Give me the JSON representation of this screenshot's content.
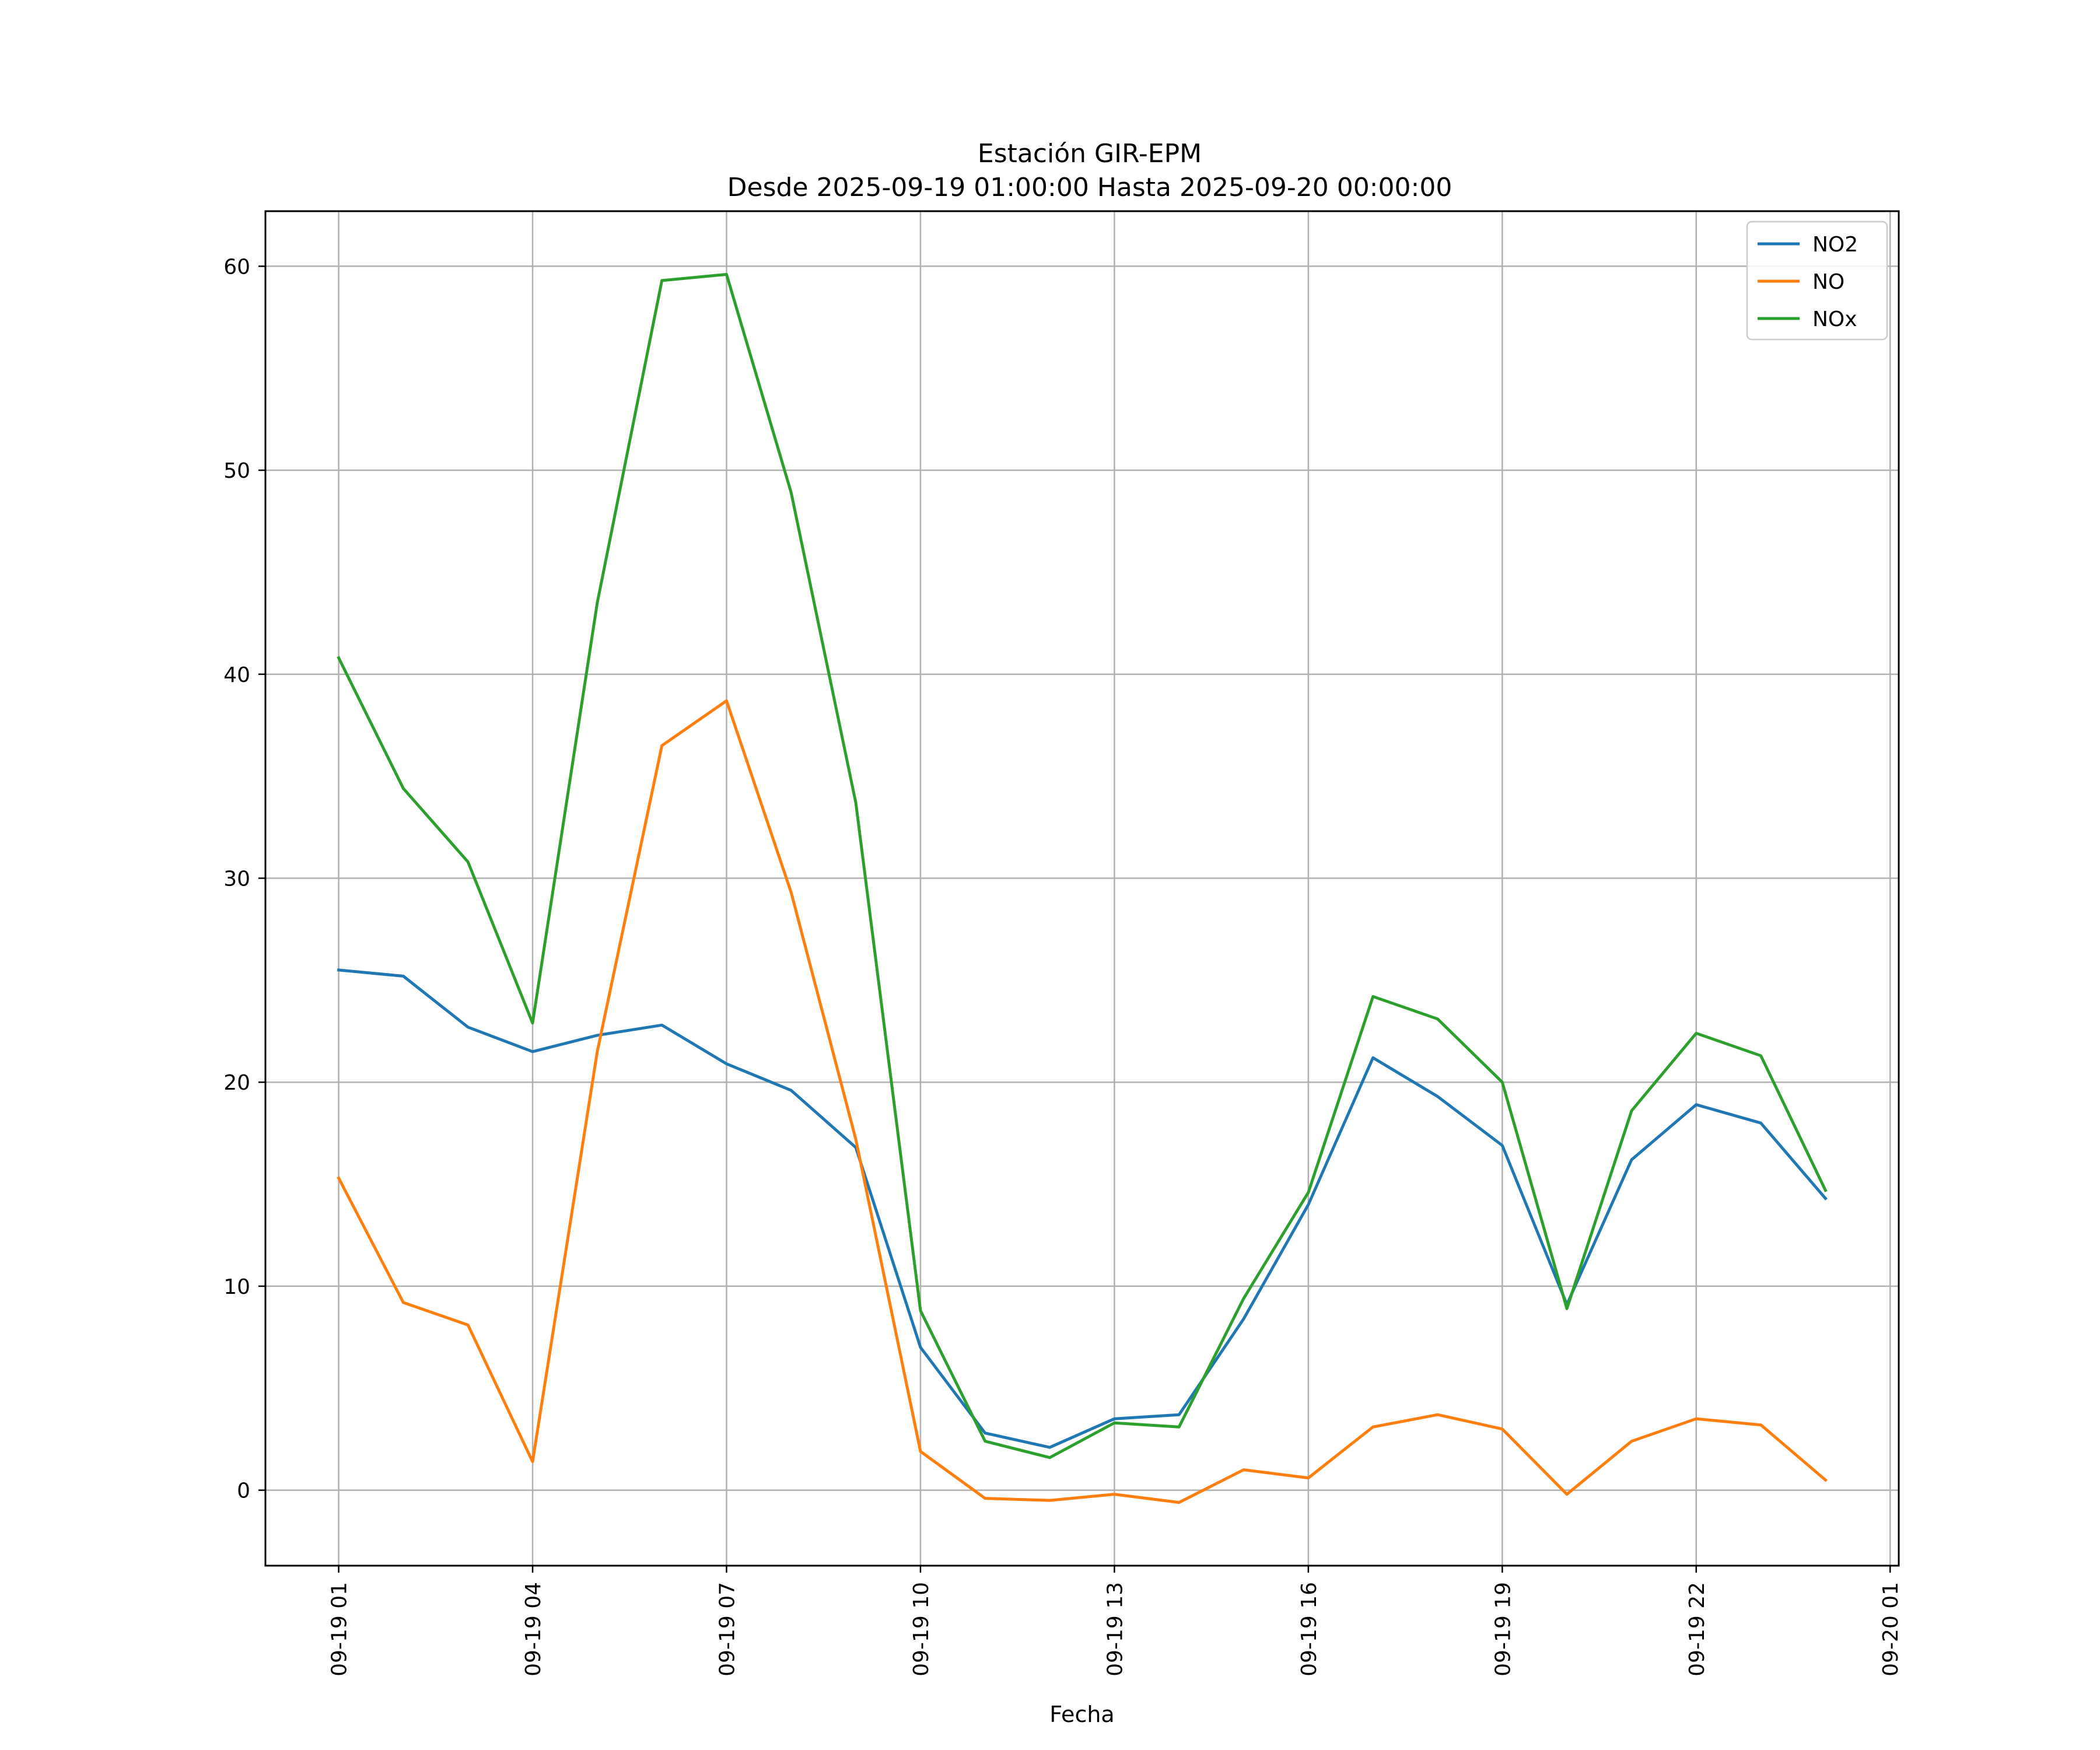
{
  "chart_data": {
    "type": "line",
    "title": "Estación GIR-EPM",
    "subtitle": "Desde 2025-09-19 01:00:00 Hasta 2025-09-20 00:00:00",
    "xlabel": "Fecha",
    "ylabel": "",
    "x": [
      "2025-09-19 01:00",
      "2025-09-19 02:00",
      "2025-09-19 03:00",
      "2025-09-19 04:00",
      "2025-09-19 05:00",
      "2025-09-19 06:00",
      "2025-09-19 07:00",
      "2025-09-19 08:00",
      "2025-09-19 09:00",
      "2025-09-19 10:00",
      "2025-09-19 11:00",
      "2025-09-19 12:00",
      "2025-09-19 13:00",
      "2025-09-19 14:00",
      "2025-09-19 15:00",
      "2025-09-19 16:00",
      "2025-09-19 17:00",
      "2025-09-19 18:00",
      "2025-09-19 19:00",
      "2025-09-19 20:00",
      "2025-09-19 21:00",
      "2025-09-19 22:00",
      "2025-09-19 23:00",
      "2025-09-20 00:00"
    ],
    "xlim": [
      "2025-09-18 23:52",
      "2025-09-20 01:08"
    ],
    "ylim": [
      -3.7,
      62.7
    ],
    "x_ticks": [
      {
        "value": "2025-09-19 01:00",
        "label": "09-19 01"
      },
      {
        "value": "2025-09-19 04:00",
        "label": "09-19 04"
      },
      {
        "value": "2025-09-19 07:00",
        "label": "09-19 07"
      },
      {
        "value": "2025-09-19 10:00",
        "label": "09-19 10"
      },
      {
        "value": "2025-09-19 13:00",
        "label": "09-19 13"
      },
      {
        "value": "2025-09-19 16:00",
        "label": "09-19 16"
      },
      {
        "value": "2025-09-19 19:00",
        "label": "09-19 19"
      },
      {
        "value": "2025-09-19 22:00",
        "label": "09-19 22"
      },
      {
        "value": "2025-09-20 01:00",
        "label": "09-20 01"
      }
    ],
    "y_ticks": [
      {
        "value": 0,
        "label": "0"
      },
      {
        "value": 10,
        "label": "10"
      },
      {
        "value": 20,
        "label": "20"
      },
      {
        "value": 30,
        "label": "30"
      },
      {
        "value": 40,
        "label": "40"
      },
      {
        "value": 50,
        "label": "50"
      },
      {
        "value": 60,
        "label": "60"
      }
    ],
    "grid": true,
    "legend": "top-right",
    "series": [
      {
        "name": "NO2",
        "color": "#1f77b4",
        "values": [
          25.5,
          25.2,
          22.7,
          21.5,
          22.3,
          22.8,
          20.9,
          19.6,
          16.8,
          7.0,
          2.8,
          2.1,
          3.5,
          3.7,
          8.4,
          14.0,
          21.2,
          19.3,
          16.9,
          9.1,
          16.2,
          18.9,
          18.0,
          14.3
        ]
      },
      {
        "name": "NO",
        "color": "#ff7f0e",
        "values": [
          15.3,
          9.2,
          8.1,
          1.4,
          21.5,
          36.5,
          38.7,
          29.3,
          17.2,
          1.9,
          -0.4,
          -0.5,
          -0.2,
          -0.6,
          1.0,
          0.6,
          3.1,
          3.7,
          3.0,
          -0.2,
          2.4,
          3.5,
          3.2,
          0.5
        ]
      },
      {
        "name": "NOx",
        "color": "#2ca02c",
        "values": [
          40.8,
          34.4,
          30.8,
          22.9,
          43.5,
          59.3,
          59.6,
          48.9,
          33.7,
          8.8,
          2.4,
          1.6,
          3.3,
          3.1,
          9.4,
          14.6,
          24.2,
          23.1,
          20.0,
          8.9,
          18.6,
          22.4,
          21.3,
          14.7
        ]
      }
    ]
  }
}
